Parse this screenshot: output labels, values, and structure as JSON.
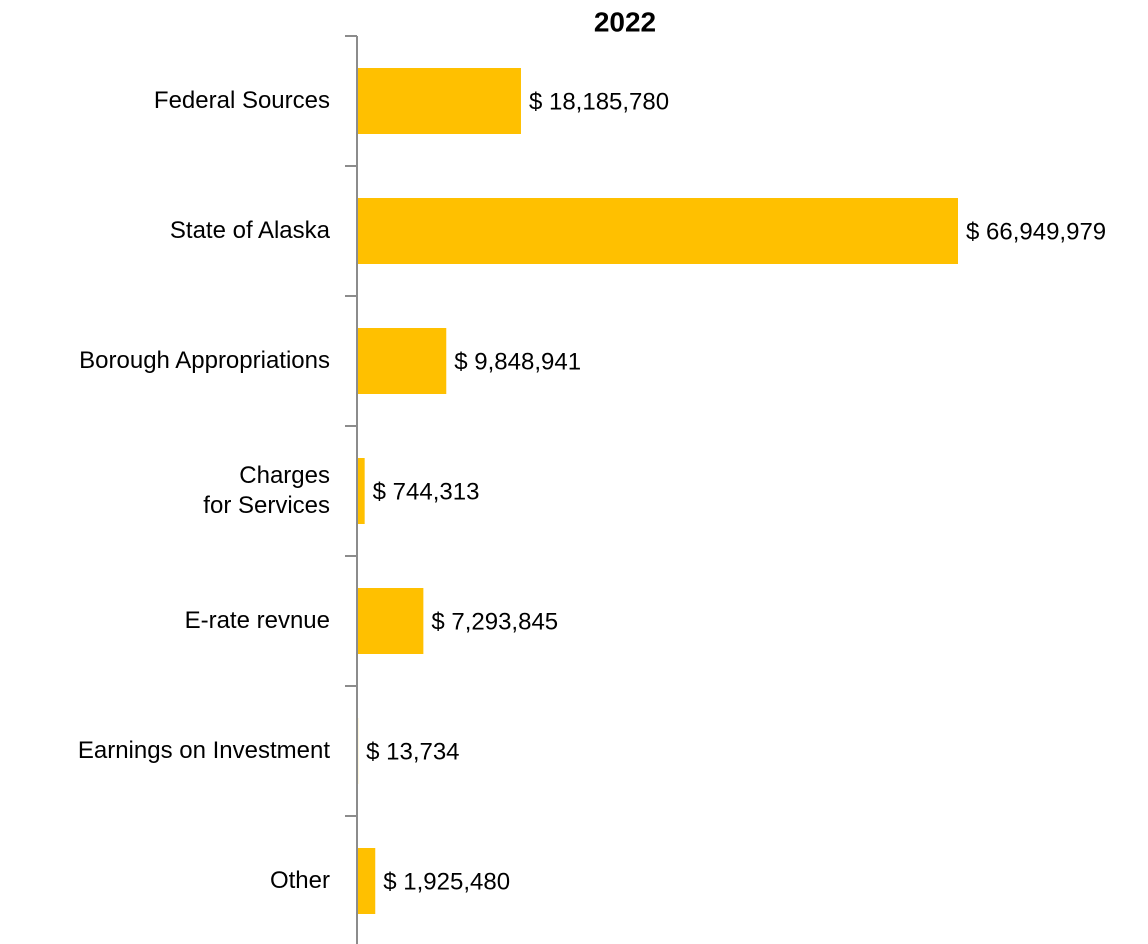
{
  "chart_data": {
    "type": "bar",
    "orientation": "horizontal",
    "title": "2022",
    "categories": [
      "Federal Sources",
      "State of Alaska",
      "Borough Appropriations",
      "Charges\nfor Services",
      "E-rate revnue",
      "Earnings on Investment",
      "Other"
    ],
    "values": [
      18185780,
      66949979,
      9848941,
      744313,
      7293845,
      13734,
      1925480
    ],
    "value_labels": [
      "$ 18,185,780",
      "$ 66,949,979",
      "$ 9,848,941",
      "$ 744,313",
      "$ 7,293,845",
      "$ 13,734",
      "$ 1,925,480"
    ],
    "color": "#FFC000"
  }
}
